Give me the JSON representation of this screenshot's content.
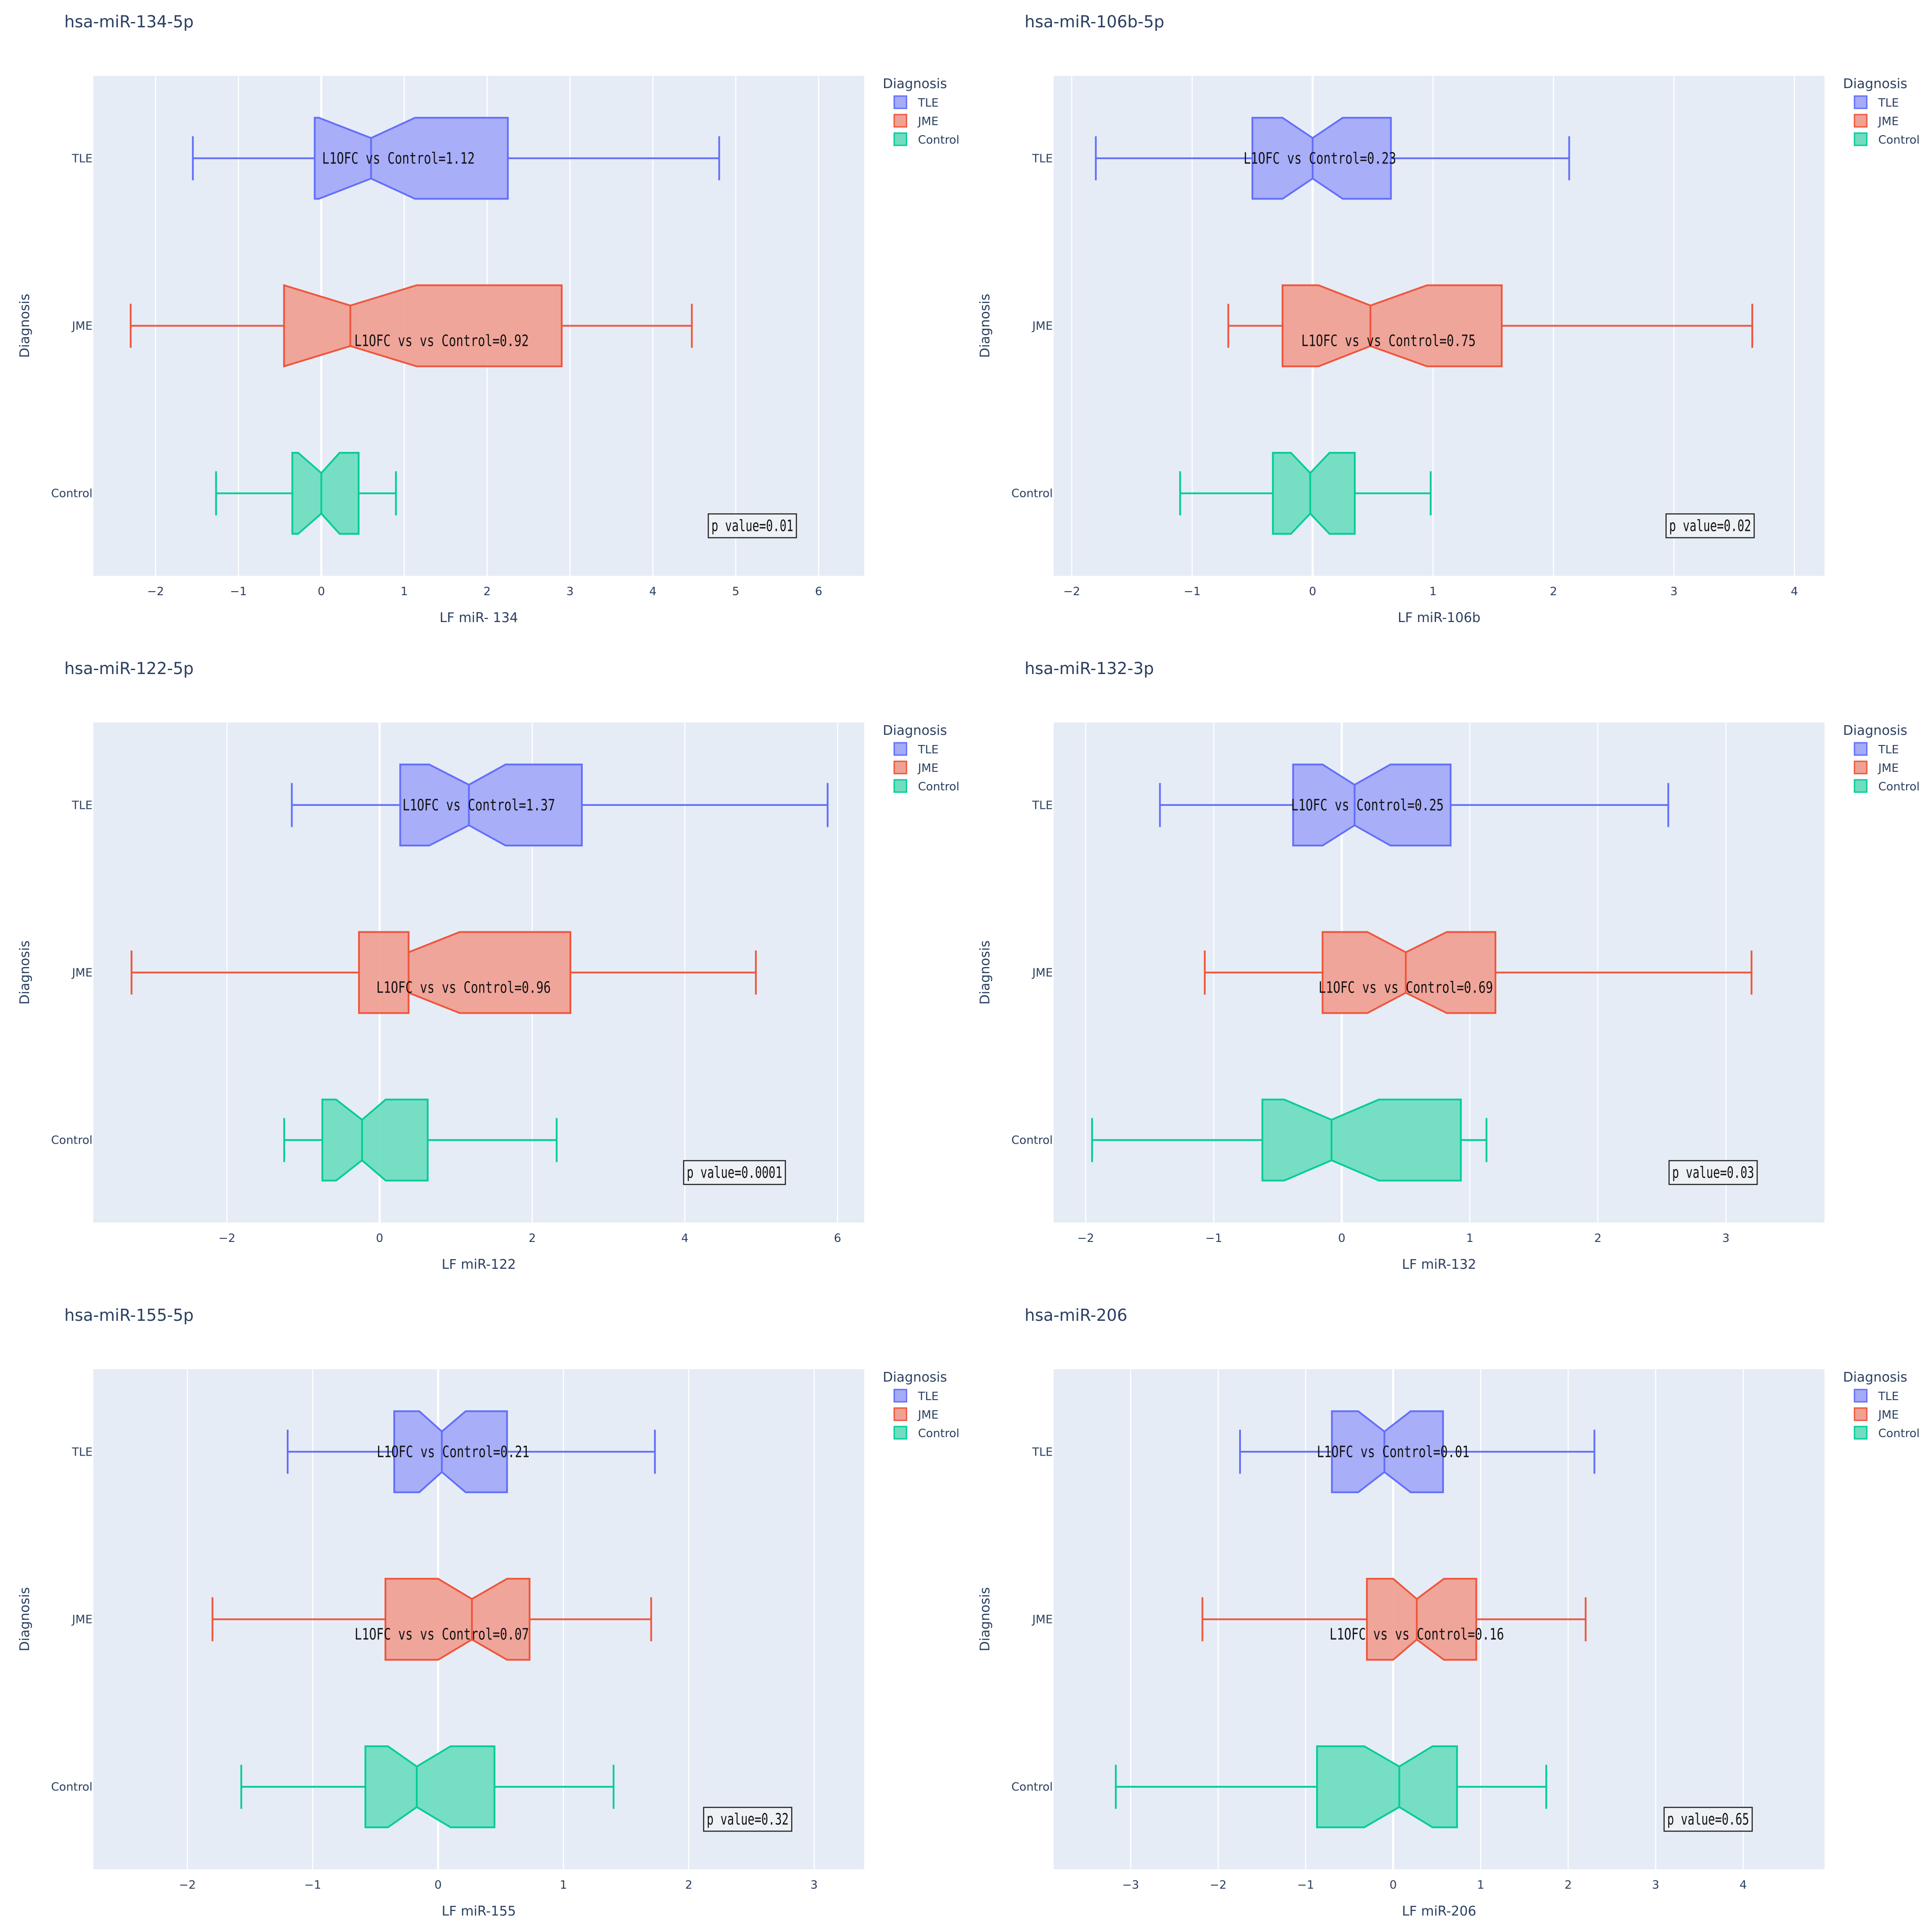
{
  "palette": {
    "TLE": {
      "fill": "#a4abf8",
      "stroke": "#636efa"
    },
    "JME": {
      "fill": "#f0a195",
      "stroke": "#ef553b"
    },
    "Control": {
      "fill": "#70ddc0",
      "stroke": "#00cc96"
    },
    "plot_bg": "#e5ecf6",
    "grid": "#ffffff",
    "text": "#2a3f5f"
  },
  "legend": {
    "title": "Diagnosis",
    "items": [
      "TLE",
      "JME",
      "Control"
    ]
  },
  "chart_data": [
    {
      "type": "box",
      "orientation": "horizontal",
      "notched": true,
      "title": "hsa-miR-134-5p",
      "xlabel": "LF miR- 134",
      "ylabel": "Diagnosis",
      "xlim": [
        -2.75,
        6.55
      ],
      "xticks": [
        -2,
        -1,
        0,
        1,
        2,
        3,
        4,
        5,
        6
      ],
      "categories": [
        "TLE",
        "JME",
        "Control"
      ],
      "series": [
        {
          "name": "TLE",
          "min": -1.55,
          "q1": -0.08,
          "median": 0.6,
          "q3": 2.25,
          "max": 4.8,
          "notch_low": -0.03,
          "notch_high": 1.13
        },
        {
          "name": "JME",
          "min": -2.3,
          "q1": -0.45,
          "median": 0.35,
          "q3": 2.9,
          "max": 4.47,
          "notch_low": -0.45,
          "notch_high": 1.15
        },
        {
          "name": "Control",
          "min": -1.27,
          "q1": -0.35,
          "median": 0.0,
          "q3": 0.45,
          "max": 0.9,
          "notch_low": -0.28,
          "notch_high": 0.22
        }
      ],
      "annotations": [
        {
          "category": "TLE",
          "text": "L1OFC vs Control=1.12",
          "x": 0.93,
          "y_offset": 0.0
        },
        {
          "category": "JME",
          "text": "L1OFC vs vs Control=0.92",
          "x": 1.45,
          "y_offset": 0.03
        }
      ],
      "p_value": {
        "text": "p value=0.01",
        "x": 5.2
      }
    },
    {
      "type": "box",
      "orientation": "horizontal",
      "notched": true,
      "title": "hsa-miR-106b-5p",
      "xlabel": "LF miR-106b",
      "ylabel": "Diagnosis",
      "xlim": [
        -2.15,
        4.25
      ],
      "xticks": [
        -2,
        -1,
        0,
        1,
        2,
        3,
        4
      ],
      "categories": [
        "TLE",
        "JME",
        "Control"
      ],
      "series": [
        {
          "name": "TLE",
          "min": -1.8,
          "q1": -0.5,
          "median": 0.0,
          "q3": 0.65,
          "max": 2.13,
          "notch_low": -0.25,
          "notch_high": 0.25
        },
        {
          "name": "JME",
          "min": -0.7,
          "q1": -0.25,
          "median": 0.48,
          "q3": 1.57,
          "max": 3.65,
          "notch_low": 0.05,
          "notch_high": 0.95
        },
        {
          "name": "Control",
          "min": -1.1,
          "q1": -0.33,
          "median": -0.02,
          "q3": 0.35,
          "max": 0.98,
          "notch_low": -0.18,
          "notch_high": 0.14
        }
      ],
      "annotations": [
        {
          "category": "TLE",
          "text": "L1OFC vs Control=0.23",
          "x": 0.06,
          "y_offset": 0.0
        },
        {
          "category": "JME",
          "text": "L1OFC vs vs Control=0.75",
          "x": 0.63,
          "y_offset": 0.03
        }
      ],
      "p_value": {
        "text": "p value=0.02",
        "x": 3.3
      }
    },
    {
      "type": "box",
      "orientation": "horizontal",
      "notched": true,
      "title": "hsa-miR-122-5p",
      "xlabel": "LF miR-122",
      "ylabel": "Diagnosis",
      "xlim": [
        -3.75,
        6.35
      ],
      "xticks": [
        -2,
        0,
        2,
        4,
        6
      ],
      "categories": [
        "TLE",
        "JME",
        "Control"
      ],
      "series": [
        {
          "name": "TLE",
          "min": -1.15,
          "q1": 0.27,
          "median": 1.17,
          "q3": 2.65,
          "max": 5.87,
          "notch_low": 0.65,
          "notch_high": 1.65
        },
        {
          "name": "JME",
          "min": -3.25,
          "q1": -0.27,
          "median": 0.38,
          "q3": 2.5,
          "max": 4.93,
          "notch_low": 0.38,
          "notch_high": 1.05
        },
        {
          "name": "Control",
          "min": -1.25,
          "q1": -0.75,
          "median": -0.23,
          "q3": 0.63,
          "max": 2.32,
          "notch_low": -0.57,
          "notch_high": 0.08
        }
      ],
      "annotations": [
        {
          "category": "TLE",
          "text": "L1OFC vs Control=1.37",
          "x": 1.3,
          "y_offset": 0.0
        },
        {
          "category": "JME",
          "text": "L1OFC vs vs Control=0.96",
          "x": 1.1,
          "y_offset": 0.03
        }
      ],
      "p_value": {
        "text": "p value=0.0001",
        "x": 4.65
      }
    },
    {
      "type": "box",
      "orientation": "horizontal",
      "notched": true,
      "title": "hsa-miR-132-3p",
      "xlabel": "LF miR-132",
      "ylabel": "Diagnosis",
      "xlim": [
        -2.25,
        3.77
      ],
      "xticks": [
        -2,
        -1,
        0,
        1,
        2,
        3
      ],
      "categories": [
        "TLE",
        "JME",
        "Control"
      ],
      "series": [
        {
          "name": "TLE",
          "min": -1.42,
          "q1": -0.38,
          "median": 0.1,
          "q3": 0.85,
          "max": 2.55,
          "notch_low": -0.15,
          "notch_high": 0.38
        },
        {
          "name": "JME",
          "min": -1.07,
          "q1": -0.15,
          "median": 0.5,
          "q3": 1.2,
          "max": 3.2,
          "notch_low": 0.2,
          "notch_high": 0.82
        },
        {
          "name": "Control",
          "min": -1.95,
          "q1": -0.62,
          "median": -0.08,
          "q3": 0.93,
          "max": 1.13,
          "notch_low": -0.45,
          "notch_high": 0.29
        }
      ],
      "annotations": [
        {
          "category": "TLE",
          "text": "L1OFC vs Control=0.25",
          "x": 0.2,
          "y_offset": 0.0
        },
        {
          "category": "JME",
          "text": "L1OFC vs vs Control=0.69",
          "x": 0.5,
          "y_offset": 0.03
        }
      ],
      "p_value": {
        "text": "p value=0.03",
        "x": 2.9
      }
    },
    {
      "type": "box",
      "orientation": "horizontal",
      "notched": true,
      "title": "hsa-miR-155-5p",
      "xlabel": "LF miR-155",
      "ylabel": "Diagnosis",
      "xlim": [
        -2.75,
        3.4
      ],
      "xticks": [
        -2,
        -1,
        0,
        1,
        2,
        3
      ],
      "categories": [
        "TLE",
        "JME",
        "Control"
      ],
      "series": [
        {
          "name": "TLE",
          "min": -1.2,
          "q1": -0.35,
          "median": 0.03,
          "q3": 0.55,
          "max": 1.73,
          "notch_low": -0.15,
          "notch_high": 0.22
        },
        {
          "name": "JME",
          "min": -1.8,
          "q1": -0.42,
          "median": 0.27,
          "q3": 0.73,
          "max": 1.7,
          "notch_low": 0.0,
          "notch_high": 0.55
        },
        {
          "name": "Control",
          "min": -1.57,
          "q1": -0.58,
          "median": -0.17,
          "q3": 0.45,
          "max": 1.4,
          "notch_low": -0.4,
          "notch_high": 0.1
        }
      ],
      "annotations": [
        {
          "category": "TLE",
          "text": "L1OFC vs Control=0.21",
          "x": 0.12,
          "y_offset": 0.0
        },
        {
          "category": "JME",
          "text": "L1OFC vs vs Control=0.07",
          "x": 0.03,
          "y_offset": 0.03
        }
      ],
      "p_value": {
        "text": "p value=0.32",
        "x": 2.47
      }
    },
    {
      "type": "box",
      "orientation": "horizontal",
      "notched": true,
      "title": "hsa-miR-206",
      "xlabel": "LF miR-206",
      "ylabel": "Diagnosis",
      "xlim": [
        -3.88,
        4.93
      ],
      "xticks": [
        -3,
        -2,
        -1,
        0,
        1,
        2,
        3,
        4
      ],
      "categories": [
        "TLE",
        "JME",
        "Control"
      ],
      "series": [
        {
          "name": "TLE",
          "min": -1.75,
          "q1": -0.7,
          "median": -0.1,
          "q3": 0.57,
          "max": 2.3,
          "notch_low": -0.4,
          "notch_high": 0.2
        },
        {
          "name": "JME",
          "min": -2.18,
          "q1": -0.3,
          "median": 0.27,
          "q3": 0.95,
          "max": 2.2,
          "notch_low": 0.0,
          "notch_high": 0.58
        },
        {
          "name": "Control",
          "min": -3.17,
          "q1": -0.87,
          "median": 0.07,
          "q3": 0.73,
          "max": 1.75,
          "notch_low": -0.33,
          "notch_high": 0.45
        }
      ],
      "annotations": [
        {
          "category": "TLE",
          "text": "L1OFC vs Control=0.01",
          "x": 0.0,
          "y_offset": 0.0
        },
        {
          "category": "JME",
          "text": "L1OFC vs vs Control=0.16",
          "x": 0.27,
          "y_offset": 0.03
        }
      ],
      "p_value": {
        "text": "p value=0.65",
        "x": 3.6
      }
    }
  ]
}
